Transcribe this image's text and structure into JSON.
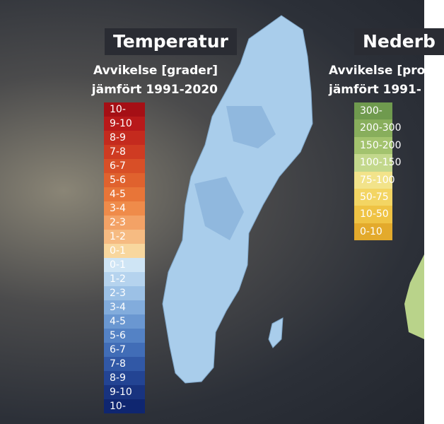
{
  "temperature": {
    "title": "Temperatur",
    "subtitle": [
      "Avvikelse [grader]",
      "jämfört 1991-2020"
    ],
    "legend": [
      {
        "label": "10-",
        "color": "#a50f15"
      },
      {
        "label": "9-10",
        "color": "#b8191a"
      },
      {
        "label": "8-9",
        "color": "#c42a1e"
      },
      {
        "label": "7-8",
        "color": "#cf3b22"
      },
      {
        "label": "6-7",
        "color": "#d84f27"
      },
      {
        "label": "5-6",
        "color": "#e0622e"
      },
      {
        "label": "4-5",
        "color": "#e87538"
      },
      {
        "label": "3-4",
        "color": "#ef8b4a"
      },
      {
        "label": "2-3",
        "color": "#f3a266"
      },
      {
        "label": "1-2",
        "color": "#f6bb82"
      },
      {
        "label": "0-1",
        "color": "#f8d79e"
      },
      {
        "label": "0-1",
        "color": "#cfe5f5"
      },
      {
        "label": "1-2",
        "color": "#b5d3ee"
      },
      {
        "label": "2-3",
        "color": "#9cc1e6"
      },
      {
        "label": "3-4",
        "color": "#82acdc"
      },
      {
        "label": "4-5",
        "color": "#6a97d1"
      },
      {
        "label": "5-6",
        "color": "#5482c5"
      },
      {
        "label": "6-7",
        "color": "#416db7"
      },
      {
        "label": "7-8",
        "color": "#3158a6"
      },
      {
        "label": "8-9",
        "color": "#234493"
      },
      {
        "label": "9-10",
        "color": "#18337f"
      },
      {
        "label": "10-",
        "color": "#0f2670"
      }
    ]
  },
  "precipitation": {
    "title": "Nederb",
    "subtitle": [
      "Avvikelse [pro",
      "jämfört 1991-"
    ],
    "legend": [
      {
        "label": "300-",
        "color": "#6f9a4e"
      },
      {
        "label": "200-300",
        "color": "#88ae5c"
      },
      {
        "label": "150-200",
        "color": "#a3c36e"
      },
      {
        "label": "100-150",
        "color": "#c3d88c"
      },
      {
        "label": "75-100",
        "color": "#f2e38a"
      },
      {
        "label": "50-75",
        "color": "#f3d563"
      },
      {
        "label": "10-50",
        "color": "#efc344"
      },
      {
        "label": "0-10",
        "color": "#e3aa2c"
      }
    ]
  }
}
